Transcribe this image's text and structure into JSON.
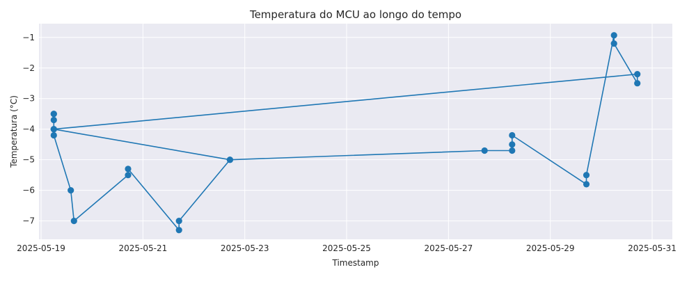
{
  "chart_data": {
    "type": "line",
    "title": "Temperatura do MCU ao longo do tempo",
    "xlabel": "Timestamp",
    "ylabel": "Temperatura (°C)",
    "x_ticks": [
      "2025-05-19",
      "2025-05-21",
      "2025-05-23",
      "2025-05-25",
      "2025-05-27",
      "2025-05-29",
      "2025-05-31"
    ],
    "y_ticks": [
      -7,
      -6,
      -5,
      -4,
      -3,
      -2,
      -1
    ],
    "xlim": [
      "2025-05-18 23:00",
      "2025-05-31 09:30"
    ],
    "ylim": [
      -7.6,
      -0.55
    ],
    "grid": true,
    "background": "#eaeaf2",
    "grid_color": "#ffffff",
    "line_color": "#1f77b4",
    "marker_color": "#1f77b4",
    "series": [
      {
        "x": [
          "2025-05-19 06:00",
          "2025-05-19 06:00",
          "2025-05-19 06:00",
          "2025-05-19 06:00",
          "2025-05-19 14:00",
          "2025-05-19 15:30",
          "2025-05-20 17:00",
          "2025-05-20 17:00",
          "2025-05-21 17:00",
          "2025-05-21 17:00",
          "2025-05-22 17:00",
          "2025-05-19 06:00",
          "2025-05-30 17:00",
          "2025-05-30 17:00",
          "2025-05-30 06:00",
          "2025-05-30 06:00",
          "2025-05-29 17:00",
          "2025-05-29 17:00",
          "2025-05-28 06:00",
          "2025-05-28 06:00",
          "2025-05-28 06:00",
          "2025-05-27 17:00",
          "2025-05-22 17:00",
          "2025-05-19 06:00",
          "2025-05-19 06:00"
        ],
        "y": [
          -3.5,
          -3.7,
          -4.0,
          -4.2,
          -6.0,
          -7.0,
          -5.5,
          -5.3,
          -7.3,
          -7.0,
          -5.0,
          -4.0,
          -2.2,
          -2.5,
          -1.2,
          -0.93,
          -5.5,
          -5.8,
          -4.2,
          -4.5,
          -4.7,
          -4.7,
          -5.0,
          -4.0,
          -3.5
        ]
      }
    ]
  }
}
